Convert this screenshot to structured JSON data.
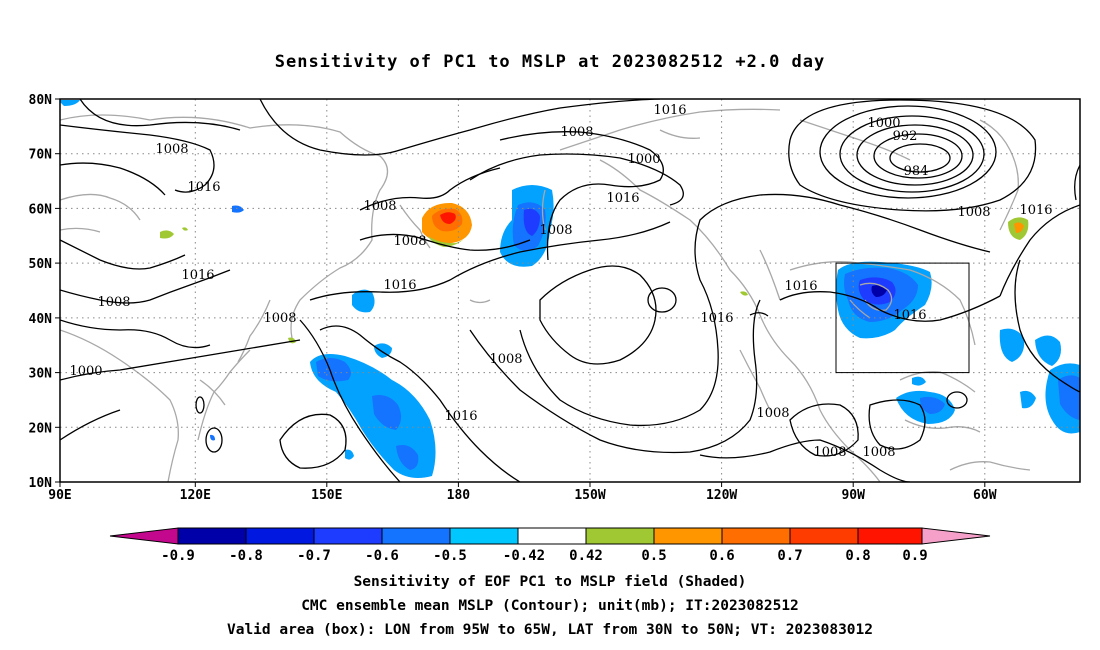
{
  "title": "Sensitivity of PC1 to MSLP at 2023082512 +2.0 day",
  "lat_labels": [
    "80N",
    "70N",
    "60N",
    "50N",
    "40N",
    "30N",
    "20N",
    "10N"
  ],
  "lon_labels": [
    "90E",
    "120E",
    "150E",
    "180",
    "150W",
    "120W",
    "90W",
    "60W"
  ],
  "contour_labels": [
    {
      "text": "1016"
    },
    {
      "text": "1008"
    },
    {
      "text": "1000"
    },
    {
      "text": "1008"
    },
    {
      "text": "1016"
    },
    {
      "text": "1000"
    },
    {
      "text": "992"
    },
    {
      "text": "984"
    },
    {
      "text": "1008"
    },
    {
      "text": "1016"
    },
    {
      "text": "1008"
    },
    {
      "text": "1016"
    },
    {
      "text": "1008"
    },
    {
      "text": "1008"
    },
    {
      "text": "1008"
    },
    {
      "text": "1016"
    },
    {
      "text": "1008"
    },
    {
      "text": "1016"
    },
    {
      "text": "1016"
    },
    {
      "text": "1016"
    },
    {
      "text": "1016"
    },
    {
      "text": "1008"
    },
    {
      "text": "1000"
    },
    {
      "text": "1016"
    },
    {
      "text": "1008"
    },
    {
      "text": "1008"
    },
    {
      "text": "1008"
    }
  ],
  "valid_box": {
    "lon_range": [
      "95W",
      "65W"
    ],
    "lat_range": [
      "30N",
      "50N"
    ]
  },
  "colorbar": {
    "labels": [
      "-0.9",
      "-0.8",
      "-0.7",
      "-0.6",
      "-0.5",
      "-0.42",
      "0.42",
      "0.5",
      "0.6",
      "0.7",
      "0.8",
      "0.9"
    ],
    "colors": [
      "#c4088d",
      "#0000a8",
      "#0018e0",
      "#1e3cff",
      "#1473ff",
      "#04a2ff",
      "#00c8ff",
      "#ffffff",
      "#a0c832",
      "#ff9600",
      "#ff6e00",
      "#ff3c00",
      "#ff1400",
      "#f5a0c8"
    ]
  },
  "caption": [
    "Sensitivity of EOF PC1 to MSLP field (Shaded)",
    "CMC ensemble mean MSLP (Contour); unit(mb); IT:2023082512",
    "Valid area (box): LON from 95W to 65W, LAT from 30N to 50N; VT: 2023083012"
  ]
}
